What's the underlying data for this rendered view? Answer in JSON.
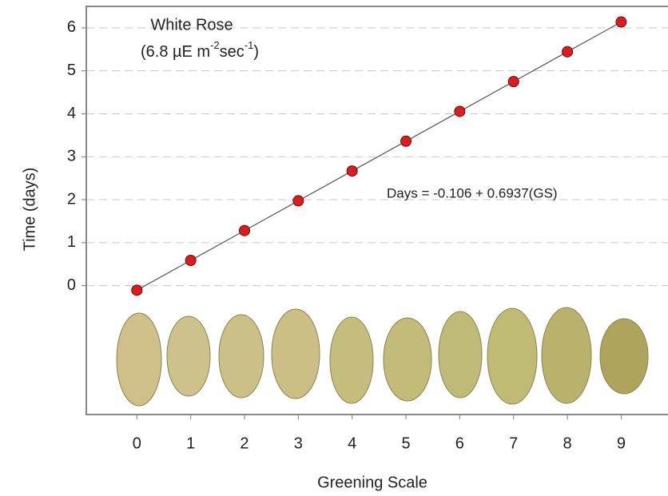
{
  "chart_data": {
    "type": "scatter",
    "title": "White Rose",
    "subtitle": [
      "(6.8 µE m",
      "-2",
      "sec",
      "-1",
      ")"
    ],
    "annotation": "Days = -0.106 + 0.6937(GS)",
    "x_label": "Greening Scale",
    "y_label": "Time (days)",
    "x": [
      0,
      1,
      2,
      3,
      4,
      5,
      6,
      7,
      8,
      9
    ],
    "series": [
      {
        "color": "#d81e1e",
        "values": [
          -0.106,
          0.588,
          1.281,
          1.975,
          2.669,
          3.362,
          4.056,
          4.75,
          5.444,
          6.137
        ]
      }
    ],
    "xlim": [
      -0.94,
      9.87
    ],
    "xticks": [
      0,
      1,
      2,
      3,
      4,
      5,
      6,
      7,
      8,
      9
    ],
    "ylim": [
      -3,
      6.5
    ],
    "yticks": [
      0,
      1,
      2,
      3,
      4,
      5,
      6
    ],
    "grid": true
  }
}
